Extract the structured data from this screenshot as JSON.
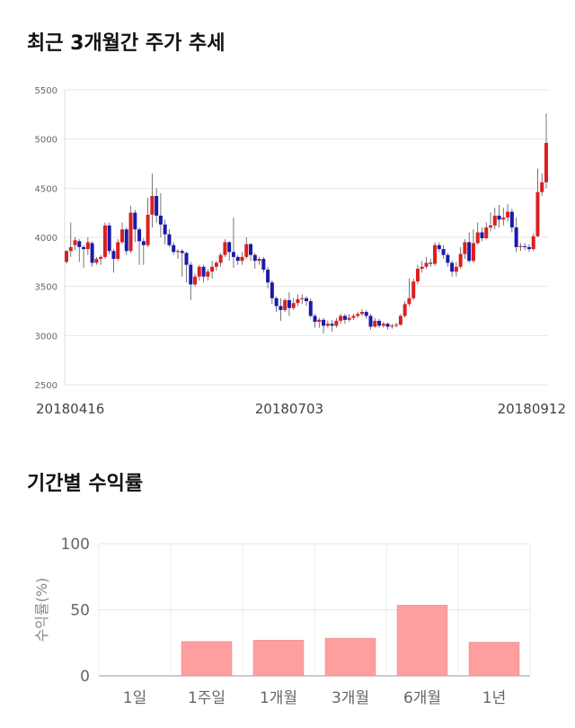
{
  "section_titles": {
    "stock_trend": "최근 3개월간 주가 추세",
    "period_returns": "기간별 수익률"
  },
  "colors": {
    "up": "#dd1f1f",
    "down": "#1a1aad",
    "wick": "#555555",
    "bar": "#ff9e9e"
  },
  "chart_data": [
    {
      "type": "candlestick",
      "title": "최근 3개월간 주가 추세",
      "ylim": [
        2500,
        5500
      ],
      "y_ticks": [
        2500,
        3000,
        3500,
        4000,
        4500,
        5000,
        5500
      ],
      "x_tick_labels": [
        "20180416",
        "20180703",
        "20180912"
      ],
      "x_tick_indices": [
        0,
        52,
        104
      ],
      "grid": true,
      "candles": [
        [
          3750,
          3860,
          3730,
          3870
        ],
        [
          3860,
          3900,
          3800,
          4150
        ],
        [
          3920,
          3970,
          3870,
          4000
        ],
        [
          3960,
          3900,
          3750,
          3980
        ],
        [
          3900,
          3880,
          3690,
          3920
        ],
        [
          3880,
          3950,
          3820,
          4000
        ],
        [
          3940,
          3740,
          3700,
          3960
        ],
        [
          3740,
          3780,
          3720,
          3800
        ],
        [
          3780,
          3800,
          3720,
          3820
        ],
        [
          3800,
          4120,
          3780,
          4150
        ],
        [
          4120,
          3860,
          3830,
          4150
        ],
        [
          3860,
          3780,
          3640,
          3880
        ],
        [
          3780,
          3950,
          3760,
          3980
        ],
        [
          3950,
          4080,
          3930,
          4150
        ],
        [
          4080,
          3860,
          3820,
          4100
        ],
        [
          3860,
          4250,
          3840,
          4320
        ],
        [
          4250,
          4080,
          3950,
          4280
        ],
        [
          4080,
          3960,
          3720,
          4100
        ],
        [
          3960,
          3920,
          3720,
          3990
        ],
        [
          3920,
          4230,
          3900,
          4400
        ],
        [
          4230,
          4420,
          4100,
          4650
        ],
        [
          4420,
          4220,
          4150,
          4500
        ],
        [
          4220,
          4130,
          4000,
          4450
        ],
        [
          4130,
          4030,
          3930,
          4180
        ],
        [
          4030,
          3920,
          3900,
          4080
        ],
        [
          3920,
          3850,
          3820,
          3950
        ],
        [
          3850,
          3860,
          3780,
          3880
        ],
        [
          3860,
          3840,
          3600,
          3880
        ],
        [
          3840,
          3720,
          3540,
          3850
        ],
        [
          3720,
          3520,
          3360,
          3750
        ],
        [
          3520,
          3600,
          3500,
          3630
        ],
        [
          3600,
          3700,
          3560,
          3720
        ],
        [
          3700,
          3600,
          3540,
          3720
        ],
        [
          3600,
          3650,
          3560,
          3680
        ],
        [
          3650,
          3700,
          3580,
          3760
        ],
        [
          3700,
          3740,
          3660,
          3760
        ],
        [
          3740,
          3820,
          3700,
          3840
        ],
        [
          3820,
          3950,
          3800,
          3980
        ],
        [
          3950,
          3850,
          3760,
          3960
        ],
        [
          3850,
          3800,
          3690,
          4200
        ],
        [
          3800,
          3760,
          3720,
          3820
        ],
        [
          3760,
          3800,
          3720,
          3850
        ],
        [
          3800,
          3930,
          3780,
          4000
        ],
        [
          3930,
          3820,
          3760,
          3940
        ],
        [
          3820,
          3760,
          3680,
          3840
        ],
        [
          3760,
          3780,
          3720,
          3800
        ],
        [
          3780,
          3670,
          3640,
          3800
        ],
        [
          3670,
          3540,
          3480,
          3700
        ],
        [
          3540,
          3380,
          3320,
          3560
        ],
        [
          3380,
          3300,
          3240,
          3400
        ],
        [
          3300,
          3260,
          3150,
          3380
        ],
        [
          3260,
          3360,
          3240,
          3380
        ],
        [
          3360,
          3280,
          3200,
          3440
        ],
        [
          3280,
          3330,
          3260,
          3380
        ],
        [
          3330,
          3370,
          3300,
          3420
        ],
        [
          3370,
          3380,
          3320,
          3420
        ],
        [
          3380,
          3350,
          3300,
          3400
        ],
        [
          3350,
          3200,
          3180,
          3380
        ],
        [
          3200,
          3140,
          3080,
          3220
        ],
        [
          3140,
          3160,
          3080,
          3180
        ],
        [
          3160,
          3100,
          3020,
          3180
        ],
        [
          3100,
          3120,
          3080,
          3150
        ],
        [
          3120,
          3100,
          3040,
          3160
        ],
        [
          3100,
          3150,
          3080,
          3180
        ],
        [
          3150,
          3200,
          3120,
          3220
        ],
        [
          3200,
          3160,
          3120,
          3220
        ],
        [
          3160,
          3180,
          3140,
          3220
        ],
        [
          3180,
          3200,
          3160,
          3220
        ],
        [
          3200,
          3220,
          3180,
          3240
        ],
        [
          3220,
          3240,
          3200,
          3270
        ],
        [
          3240,
          3200,
          3170,
          3260
        ],
        [
          3200,
          3090,
          3060,
          3220
        ],
        [
          3090,
          3150,
          3080,
          3180
        ],
        [
          3150,
          3100,
          3080,
          3170
        ],
        [
          3100,
          3120,
          3080,
          3140
        ],
        [
          3120,
          3090,
          3060,
          3130
        ],
        [
          3090,
          3100,
          3070,
          3120
        ],
        [
          3100,
          3110,
          3080,
          3130
        ],
        [
          3110,
          3200,
          3100,
          3220
        ],
        [
          3200,
          3320,
          3180,
          3350
        ],
        [
          3320,
          3380,
          3300,
          3580
        ],
        [
          3380,
          3550,
          3360,
          3580
        ],
        [
          3550,
          3680,
          3520,
          3720
        ],
        [
          3680,
          3700,
          3640,
          3760
        ],
        [
          3700,
          3740,
          3680,
          3800
        ],
        [
          3740,
          3730,
          3700,
          3780
        ],
        [
          3730,
          3920,
          3710,
          3950
        ],
        [
          3920,
          3880,
          3850,
          3950
        ],
        [
          3880,
          3820,
          3780,
          3920
        ],
        [
          3820,
          3740,
          3700,
          3840
        ],
        [
          3740,
          3650,
          3600,
          3760
        ],
        [
          3650,
          3700,
          3600,
          3750
        ],
        [
          3700,
          3830,
          3680,
          3900
        ],
        [
          3830,
          3950,
          3780,
          3980
        ],
        [
          3950,
          3760,
          3740,
          4050
        ],
        [
          3760,
          3940,
          3740,
          4080
        ],
        [
          3940,
          4050,
          3930,
          4150
        ],
        [
          4050,
          3990,
          3960,
          4100
        ],
        [
          3990,
          4100,
          3980,
          4150
        ],
        [
          4100,
          4120,
          4060,
          4250
        ],
        [
          4120,
          4220,
          4080,
          4300
        ],
        [
          4220,
          4180,
          4100,
          4330
        ],
        [
          4180,
          4200,
          4120,
          4300
        ],
        [
          4200,
          4260,
          4160,
          4340
        ],
        [
          4260,
          4100,
          4050,
          4290
        ],
        [
          4100,
          3900,
          3850,
          4200
        ],
        [
          3900,
          3910,
          3860,
          3940
        ],
        [
          3910,
          3900,
          3870,
          3940
        ],
        [
          3900,
          3880,
          3850,
          3930
        ],
        [
          3880,
          4010,
          3860,
          4040
        ],
        [
          4010,
          4460,
          4000,
          4700
        ],
        [
          4460,
          4560,
          4420,
          4650
        ],
        [
          4560,
          4960,
          4500,
          5260
        ]
      ]
    },
    {
      "type": "bar",
      "title": "기간별 수익률",
      "ylabel": "수익률(%)",
      "categories": [
        "1일",
        "1주일",
        "1개월",
        "3개월",
        "6개월",
        "1년"
      ],
      "values": [
        0,
        26,
        27,
        28.5,
        53.5,
        25.5
      ],
      "ylim": [
        0,
        100
      ],
      "y_ticks": [
        0,
        50,
        100
      ],
      "grid": true
    }
  ]
}
